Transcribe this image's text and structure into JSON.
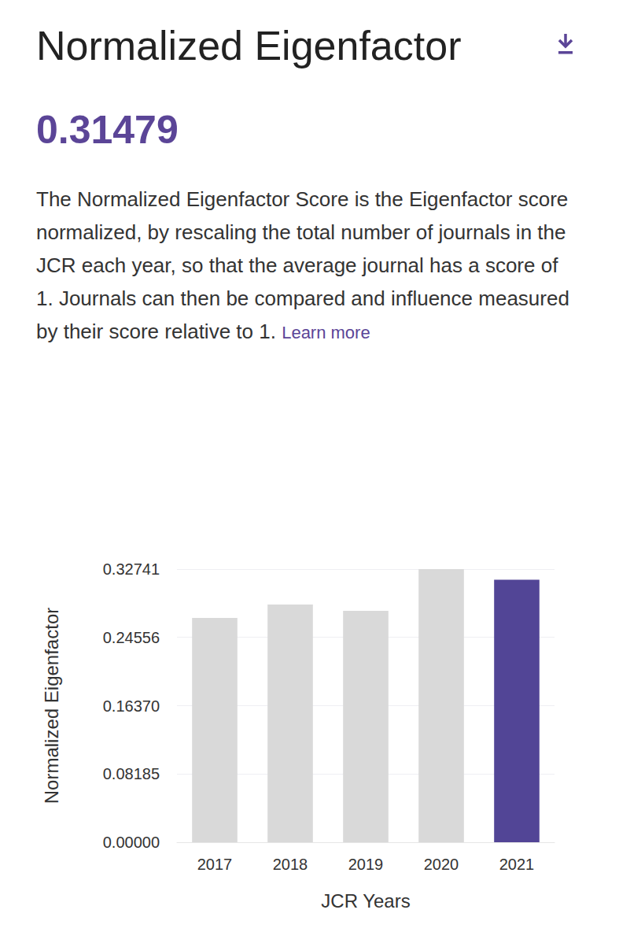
{
  "header": {
    "title": "Normalized Eigenfactor",
    "value": "0.31479",
    "description": "The Normalized Eigenfactor Score is the Eigenfactor score normalized, by rescaling the total number of journals in the JCR each year, so that the average journal has a score of 1. Journals can then be compared and influence measured by their score relative to 1.",
    "link": "Learn more"
  },
  "chart_data": {
    "type": "bar",
    "x_label": "JCR Years",
    "y_label": "Normalized Eigenfactor",
    "categories": [
      "2017",
      "2018",
      "2019",
      "2020",
      "2021"
    ],
    "values": [
      0.2689,
      0.285,
      0.2774,
      0.32741,
      0.31479
    ],
    "colors": [
      "#d9d9d9",
      "#d9d9d9",
      "#d9d9d9",
      "#d9d9d9",
      "#524596"
    ],
    "ylim": [
      0,
      0.32741
    ],
    "yticks": [
      {
        "value": 0,
        "label": "0.00000"
      },
      0.08185,
      {
        "value": 0.1637,
        "label": "0.16370"
      },
      0.24556,
      0.32741
    ],
    "grid": true
  }
}
